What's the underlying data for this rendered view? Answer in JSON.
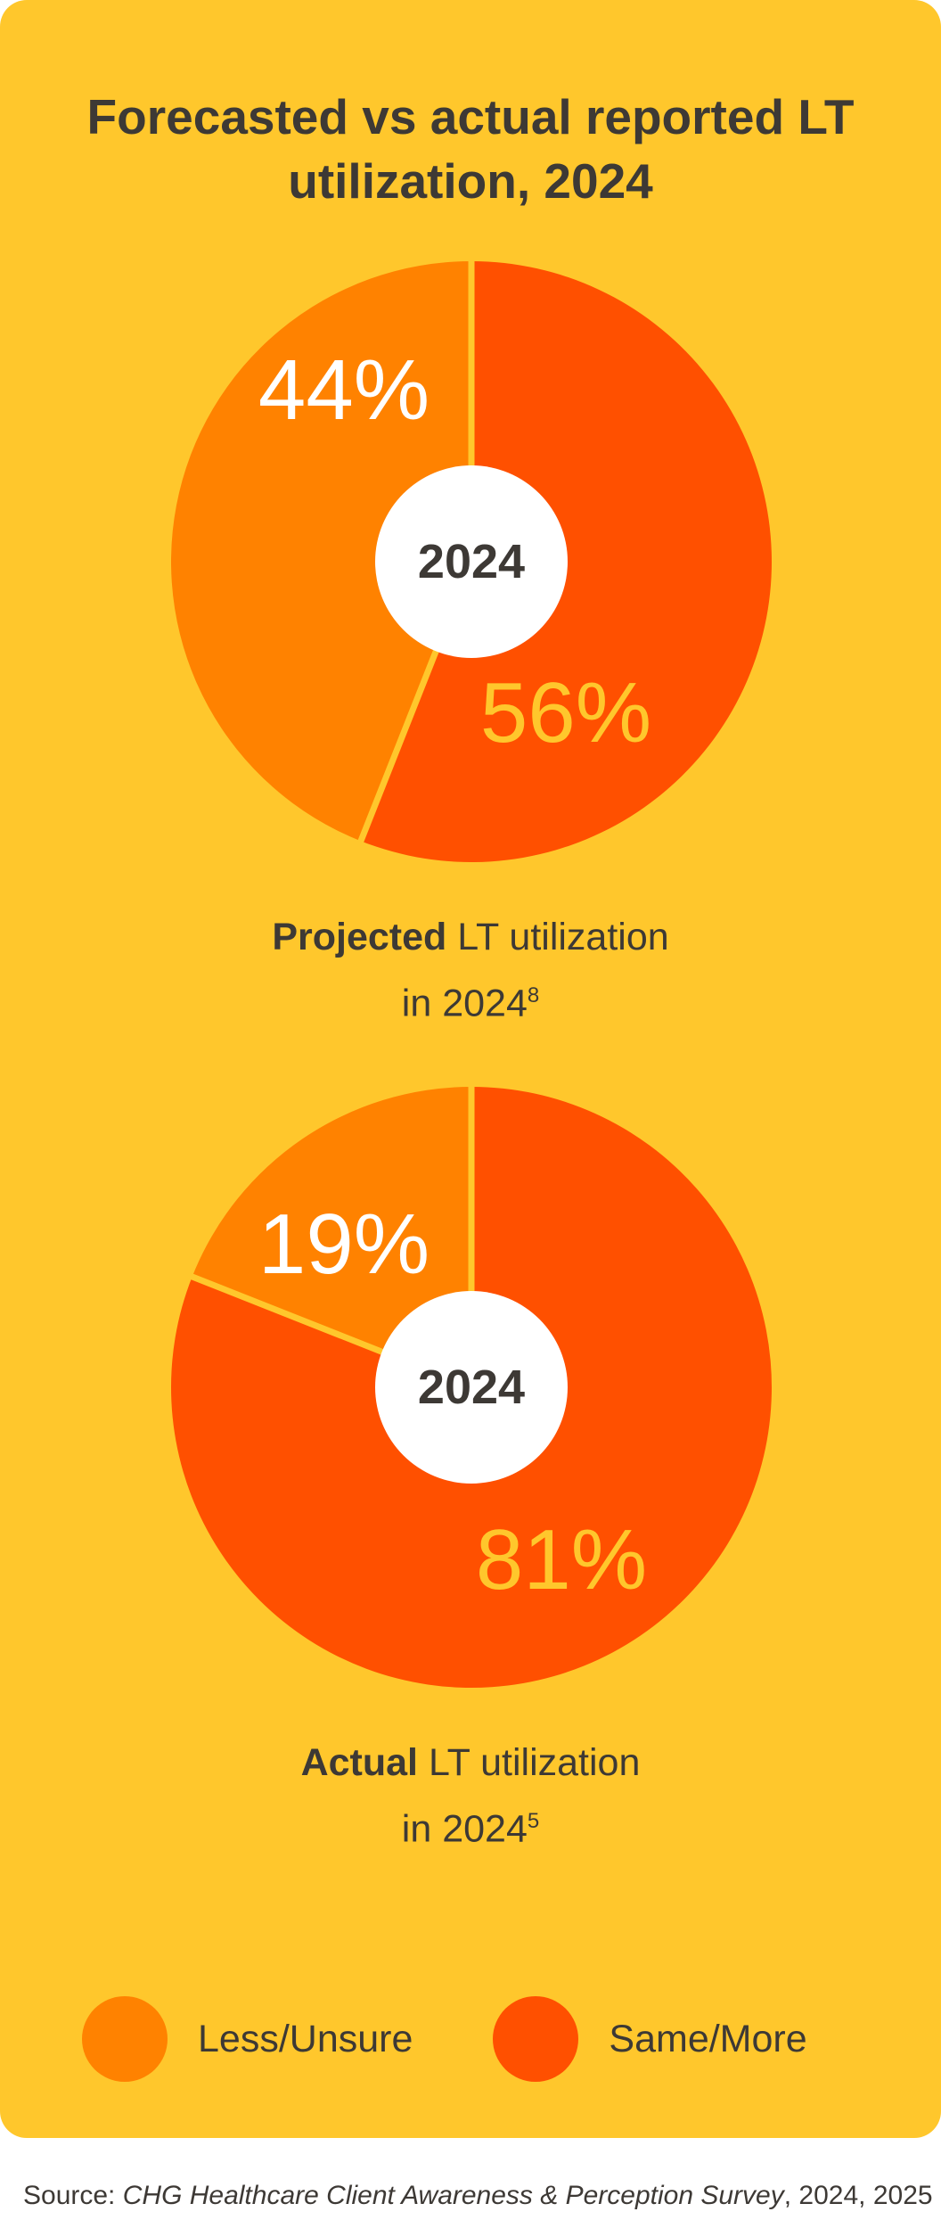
{
  "title": "Forecasted vs actual reported LT utilization, 2024",
  "colors": {
    "background": "#FFC72C",
    "less_unsure": "#FF8200",
    "same_more": "#FF5000",
    "text": "#3D3935",
    "hole": "#FFFFFF"
  },
  "chart_data": [
    {
      "type": "pie",
      "center_label": "2024",
      "categories": [
        "Less/Unsure",
        "Same/More"
      ],
      "values": [
        44,
        56
      ],
      "labels": [
        "44%",
        "56%"
      ],
      "caption": {
        "bold": "Projected",
        "rest": " LT utilization",
        "line2": "in 2024",
        "footnote": "8"
      }
    },
    {
      "type": "pie",
      "center_label": "2024",
      "categories": [
        "Less/Unsure",
        "Same/More"
      ],
      "values": [
        19,
        81
      ],
      "labels": [
        "19%",
        "81%"
      ],
      "caption": {
        "bold": "Actual",
        "rest": " LT utilization",
        "line2": "in 2024",
        "footnote": "5"
      }
    }
  ],
  "legend": [
    {
      "label": "Less/Unsure",
      "color": "#FF8200"
    },
    {
      "label": "Same/More",
      "color": "#FF5000"
    }
  ],
  "source": {
    "prefix": "Source: ",
    "italic": "CHG Healthcare Client Awareness & Perception Survey",
    "suffix": ", 2024, 2025"
  }
}
